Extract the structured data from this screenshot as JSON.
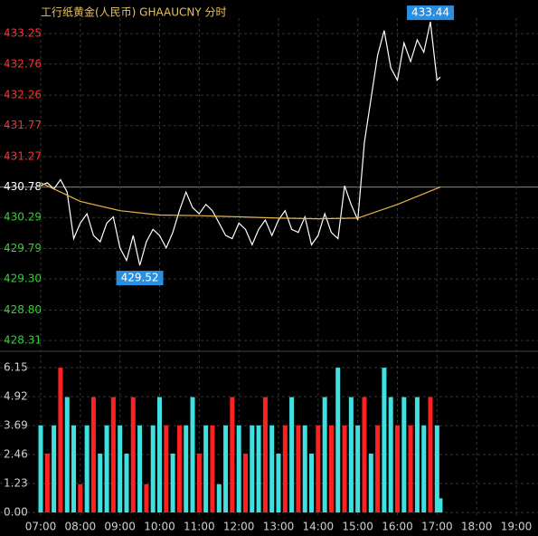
{
  "chart_data": [
    {
      "type": "line",
      "title": "工行纸黄金(人民币) GHAAUCNY 分时",
      "x": [
        7,
        7.167,
        7.333,
        7.5,
        7.667,
        7.833,
        8,
        8.167,
        8.333,
        8.5,
        8.667,
        8.833,
        9,
        9.167,
        9.333,
        9.5,
        9.667,
        9.833,
        10,
        10.167,
        10.333,
        10.5,
        10.667,
        10.833,
        11,
        11.167,
        11.333,
        11.5,
        11.667,
        11.833,
        12,
        12.167,
        12.333,
        12.5,
        12.667,
        12.833,
        13,
        13.167,
        13.333,
        13.5,
        13.667,
        13.833,
        14,
        14.167,
        14.333,
        14.5,
        14.667,
        14.833,
        15,
        15.167,
        15.333,
        15.5,
        15.667,
        15.833,
        16,
        16.167,
        16.333,
        16.5,
        16.667,
        16.833,
        17,
        17.083
      ],
      "series": [
        {
          "color": "#ffffff",
          "values": [
            430.8,
            430.85,
            430.75,
            430.9,
            430.7,
            429.95,
            430.2,
            430.35,
            430,
            429.9,
            430.2,
            430.3,
            429.8,
            429.6,
            430,
            429.52,
            429.9,
            430.1,
            430,
            429.8,
            430.05,
            430.4,
            430.7,
            430.45,
            430.35,
            430.5,
            430.4,
            430.2,
            430,
            429.95,
            430.2,
            430.1,
            429.85,
            430.1,
            430.25,
            430,
            430.25,
            430.4,
            430.1,
            430.05,
            430.3,
            429.85,
            430,
            430.35,
            430.05,
            429.95,
            430.8,
            430.5,
            430.25,
            431.5,
            432.2,
            432.9,
            433.3,
            432.7,
            432.5,
            433.1,
            432.8,
            433.15,
            432.95,
            433.44,
            432.5,
            432.55
          ]
        },
        {
          "color": "#e8b44a",
          "x": [
            7,
            8,
            9,
            10,
            11,
            12,
            13,
            14,
            15,
            16,
            17.083
          ],
          "values": [
            430.85,
            430.55,
            430.4,
            430.33,
            430.32,
            430.3,
            430.28,
            430.27,
            430.28,
            430.5,
            430.78
          ]
        }
      ],
      "annotations": [
        {
          "value": 433.44
        },
        {
          "value": 429.52
        }
      ],
      "reference": 430.78,
      "up_color": "#ff3030",
      "down_color": "#35d035",
      "grid": true,
      "xlim": [
        7,
        19
      ],
      "ylim": [
        428.18,
        433.5
      ],
      "yticks": [
        433.25,
        432.76,
        432.26,
        431.77,
        431.27,
        430.78,
        430.29,
        429.79,
        {
          "value": 429.3,
          "label": "429.30"
        },
        {
          "value": 428.8,
          "label": "428.80"
        },
        428.31
      ]
    },
    {
      "type": "bar",
      "x": [
        7,
        7.167,
        7.333,
        7.5,
        7.667,
        7.833,
        8,
        8.167,
        8.333,
        8.5,
        8.667,
        8.833,
        9,
        9.167,
        9.333,
        9.5,
        9.667,
        9.833,
        10,
        10.167,
        10.333,
        10.5,
        10.667,
        10.833,
        11,
        11.167,
        11.333,
        11.5,
        11.667,
        11.833,
        12,
        12.167,
        12.333,
        12.5,
        12.667,
        12.833,
        13,
        13.167,
        13.333,
        13.5,
        13.667,
        13.833,
        14,
        14.167,
        14.333,
        14.5,
        14.667,
        14.833,
        15,
        15.167,
        15.333,
        15.5,
        15.667,
        15.833,
        16,
        16.167,
        16.333,
        16.5,
        16.667,
        16.833,
        17,
        17.083
      ],
      "values": [
        3.7,
        2.5,
        3.7,
        6.15,
        4.9,
        3.7,
        1.2,
        3.7,
        4.9,
        2.5,
        3.7,
        4.9,
        3.7,
        2.5,
        4.9,
        3.7,
        1.2,
        3.7,
        4.9,
        3.7,
        2.5,
        3.7,
        3.7,
        4.9,
        2.5,
        3.7,
        3.7,
        1.2,
        3.7,
        4.9,
        3.7,
        2.5,
        3.7,
        3.7,
        4.9,
        3.7,
        2.5,
        3.7,
        4.9,
        3.7,
        3.7,
        2.5,
        3.7,
        4.9,
        3.7,
        6.15,
        3.7,
        4.9,
        3.7,
        4.9,
        2.5,
        3.7,
        6.15,
        4.9,
        3.7,
        4.9,
        3.7,
        4.9,
        3.7,
        4.9,
        3.7,
        0.6
      ],
      "colors": [
        "#40e0e0",
        "#ff2020",
        "#40e0e0",
        "#ff2020",
        "#40e0e0",
        "#40e0e0",
        "#ff2020",
        "#40e0e0",
        "#ff2020",
        "#40e0e0",
        "#40e0e0",
        "#ff2020",
        "#40e0e0",
        "#40e0e0",
        "#ff2020",
        "#40e0e0",
        "#ff2020",
        "#40e0e0",
        "#40e0e0",
        "#ff2020",
        "#40e0e0",
        "#ff2020",
        "#40e0e0",
        "#40e0e0",
        "#ff2020",
        "#40e0e0",
        "#ff2020",
        "#40e0e0",
        "#40e0e0",
        "#ff2020",
        "#40e0e0",
        "#ff2020",
        "#40e0e0",
        "#40e0e0",
        "#ff2020",
        "#40e0e0",
        "#40e0e0",
        "#ff2020",
        "#40e0e0",
        "#ff2020",
        "#40e0e0",
        "#40e0e0",
        "#ff2020",
        "#40e0e0",
        "#ff2020",
        "#40e0e0",
        "#ff2020",
        "#40e0e0",
        "#40e0e0",
        "#ff2020",
        "#40e0e0",
        "#ff2020",
        "#40e0e0",
        "#40e0e0",
        "#ff2020",
        "#40e0e0",
        "#ff2020",
        "#40e0e0",
        "#40e0e0",
        "#ff2020",
        "#40e0e0",
        "#40e0e0"
      ],
      "xlim": [
        7,
        19
      ],
      "ylim": [
        0,
        6.77
      ],
      "yticks": [
        6.15,
        4.92,
        3.69,
        2.46,
        1.23,
        {
          "value": 0,
          "label": "0.00"
        }
      ],
      "xticks": [
        {
          "value": 7,
          "label": "07:00"
        },
        {
          "value": 8,
          "label": "08:00"
        },
        {
          "value": 9,
          "label": "09:00"
        },
        {
          "value": 10,
          "label": "10:00"
        },
        {
          "value": 11,
          "label": "11:00"
        },
        {
          "value": 12,
          "label": "12:00"
        },
        {
          "value": 13,
          "label": "13:00"
        },
        {
          "value": 14,
          "label": "14:00"
        },
        {
          "value": 15,
          "label": "15:00"
        },
        {
          "value": 16,
          "label": "16:00"
        },
        {
          "value": 17,
          "label": "17:00"
        },
        {
          "value": 18,
          "label": "18:00"
        },
        {
          "value": 19,
          "label": "19:00"
        }
      ]
    }
  ]
}
